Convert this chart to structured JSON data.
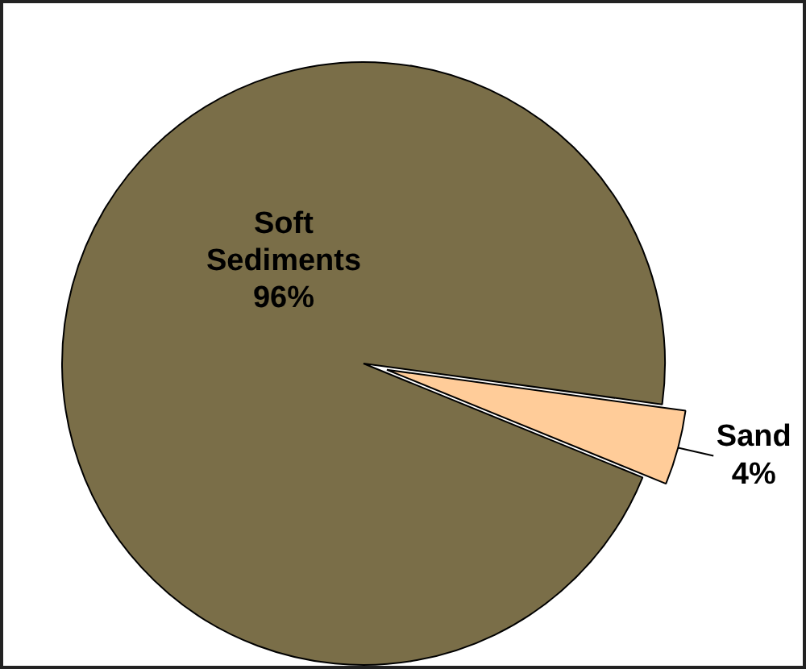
{
  "chart_data": {
    "type": "pie",
    "categories": [
      "Soft Sediments",
      "Sand"
    ],
    "values": [
      96,
      4
    ],
    "colors": [
      "#7a6e48",
      "#ffcc99"
    ],
    "value_labels": [
      "96%",
      "4%"
    ]
  }
}
